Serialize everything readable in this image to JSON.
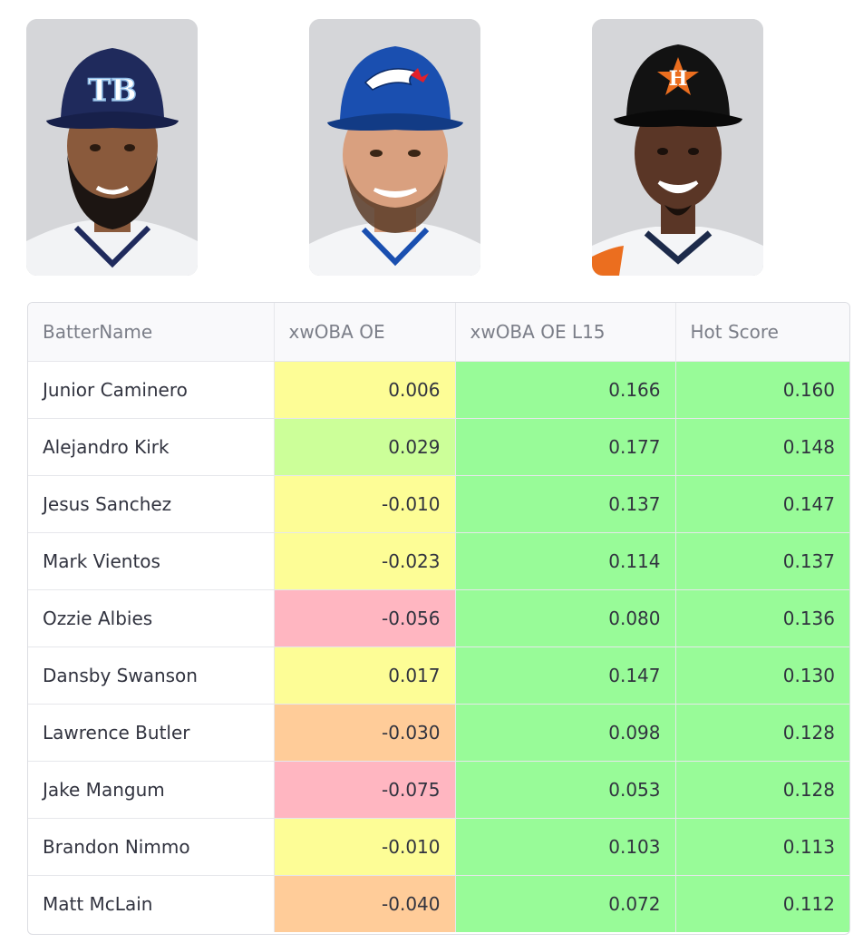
{
  "players_photos": [
    {
      "name": "player-photo-rays",
      "cap_color": "#1f2a5c",
      "logo_text": "TB",
      "skin": "#8a5a3c",
      "beard": "#1c1512"
    },
    {
      "name": "player-photo-bluejays",
      "cap_color": "#1a4fb0",
      "logo_text": "",
      "skin": "#d9a07f",
      "beard": "#5a3c28"
    },
    {
      "name": "player-photo-astros",
      "cap_color": "#121212",
      "logo_text": "H",
      "skin": "#5a3626",
      "beard": "#1a100b"
    }
  ],
  "table": {
    "headers": [
      "BatterName",
      "xwOBA OE",
      "xwOBA OE L15",
      "Hot Score"
    ],
    "rows": [
      {
        "name": "Junior Caminero",
        "xwoba_oe": "0.006",
        "xwoba_oe_l15": "0.166",
        "hot_score": "0.160",
        "oe_color": "#fdfd96"
      },
      {
        "name": "Alejandro Kirk",
        "xwoba_oe": "0.029",
        "xwoba_oe_l15": "0.177",
        "hot_score": "0.148",
        "oe_color": "#ccff99"
      },
      {
        "name": "Jesus Sanchez",
        "xwoba_oe": "-0.010",
        "xwoba_oe_l15": "0.137",
        "hot_score": "0.147",
        "oe_color": "#fdfd96"
      },
      {
        "name": "Mark Vientos",
        "xwoba_oe": "-0.023",
        "xwoba_oe_l15": "0.114",
        "hot_score": "0.137",
        "oe_color": "#fdfd96"
      },
      {
        "name": "Ozzie Albies",
        "xwoba_oe": "-0.056",
        "xwoba_oe_l15": "0.080",
        "hot_score": "0.136",
        "oe_color": "#ffb6c1"
      },
      {
        "name": "Dansby Swanson",
        "xwoba_oe": "0.017",
        "xwoba_oe_l15": "0.147",
        "hot_score": "0.130",
        "oe_color": "#fdfd96"
      },
      {
        "name": "Lawrence Butler",
        "xwoba_oe": "-0.030",
        "xwoba_oe_l15": "0.098",
        "hot_score": "0.128",
        "oe_color": "#ffcc99"
      },
      {
        "name": "Jake Mangum",
        "xwoba_oe": "-0.075",
        "xwoba_oe_l15": "0.053",
        "hot_score": "0.128",
        "oe_color": "#ffb6c1"
      },
      {
        "name": "Brandon Nimmo",
        "xwoba_oe": "-0.010",
        "xwoba_oe_l15": "0.103",
        "hot_score": "0.113",
        "oe_color": "#fdfd96"
      },
      {
        "name": "Matt McLain",
        "xwoba_oe": "-0.040",
        "xwoba_oe_l15": "0.072",
        "hot_score": "0.112",
        "oe_color": "#ffcc99"
      }
    ],
    "l15_color": "#98fb98",
    "hot_color": "#98fb98"
  }
}
